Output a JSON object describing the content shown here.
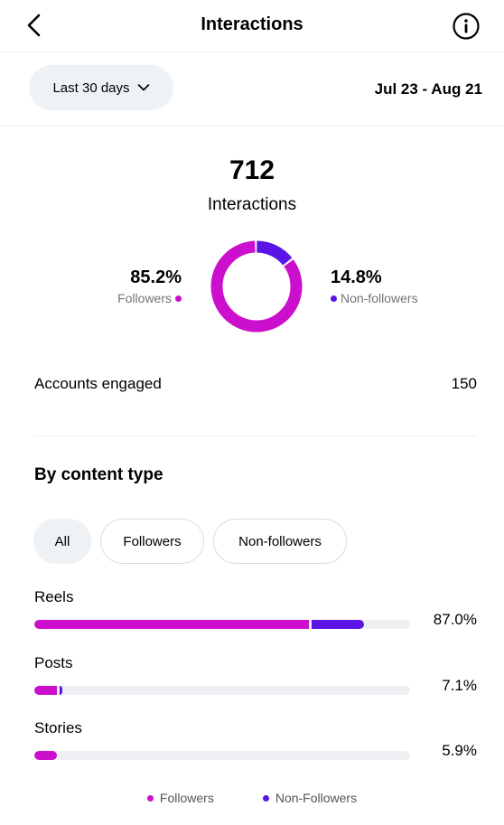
{
  "header": {
    "title": "Interactions",
    "back_icon": "chevron-left-icon",
    "info_icon": "info-circle-icon"
  },
  "range": {
    "selected": "Last 30 days",
    "dropdown_icon": "chevron-down-icon",
    "date_range": "Jul 23 - Aug 21"
  },
  "summary": {
    "total": "712",
    "total_label": "Interactions",
    "followers_pct": "85.2%",
    "followers_label": "Followers",
    "non_followers_pct": "14.8%",
    "non_followers_label": "Non-followers",
    "followers_fraction": 0.852,
    "non_followers_fraction": 0.148
  },
  "engaged": {
    "label": "Accounts engaged",
    "value": "150"
  },
  "content_type": {
    "title": "By content type",
    "tabs": [
      {
        "label": "All",
        "selected": true
      },
      {
        "label": "Followers",
        "selected": false
      },
      {
        "label": "Non-followers",
        "selected": false
      }
    ],
    "items": [
      {
        "label": "Reels",
        "pct": "87.0%",
        "followers_fraction": 0.73,
        "non_followers_fraction": 0.14
      },
      {
        "label": "Posts",
        "pct": "7.1%",
        "followers_fraction": 0.061,
        "non_followers_fraction": 0.007
      },
      {
        "label": "Stories",
        "pct": "5.9%",
        "followers_fraction": 0.059,
        "non_followers_fraction": 0.0
      }
    ]
  },
  "legend": {
    "followers": "Followers",
    "non_followers": "Non-Followers"
  },
  "colors": {
    "followers": "#cc0fcc",
    "non_followers": "#5a14e6",
    "track": "#eef0f3"
  }
}
